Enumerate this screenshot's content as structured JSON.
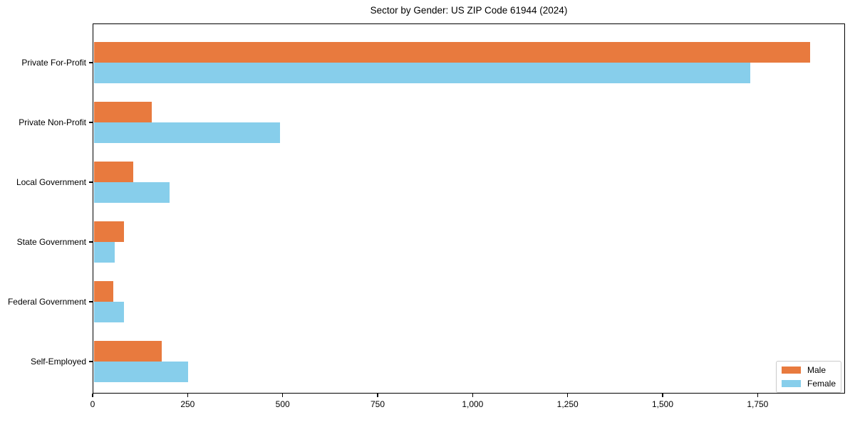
{
  "title": "Sector by Gender: US ZIP Code 61944 (2024)",
  "chart_data": {
    "type": "bar",
    "orientation": "horizontal",
    "title": "Sector by Gender: US ZIP Code 61944 (2024)",
    "categories": [
      "Private For-Profit",
      "Private Non-Profit",
      "Local Government",
      "State Government",
      "Federal Government",
      "Self-Employed"
    ],
    "series": [
      {
        "name": "Male",
        "color": "#e87a3e",
        "values": [
          1885,
          153,
          104,
          80,
          52,
          178
        ]
      },
      {
        "name": "Female",
        "color": "#87ceeb",
        "values": [
          1727,
          490,
          200,
          55,
          80,
          248
        ]
      }
    ],
    "xlabel": "",
    "ylabel": "",
    "xlim": [
      0,
      1980
    ],
    "xticks": [
      0,
      250,
      500,
      750,
      1000,
      1250,
      1500,
      1750
    ],
    "xtick_labels": [
      "0",
      "250",
      "500",
      "750",
      "1,000",
      "1,250",
      "1,500",
      "1,750"
    ],
    "grid": false,
    "legend_position": "lower right"
  },
  "legend": {
    "items": [
      {
        "label": "Male",
        "color": "#e87a3e"
      },
      {
        "label": "Female",
        "color": "#87ceeb"
      }
    ]
  }
}
